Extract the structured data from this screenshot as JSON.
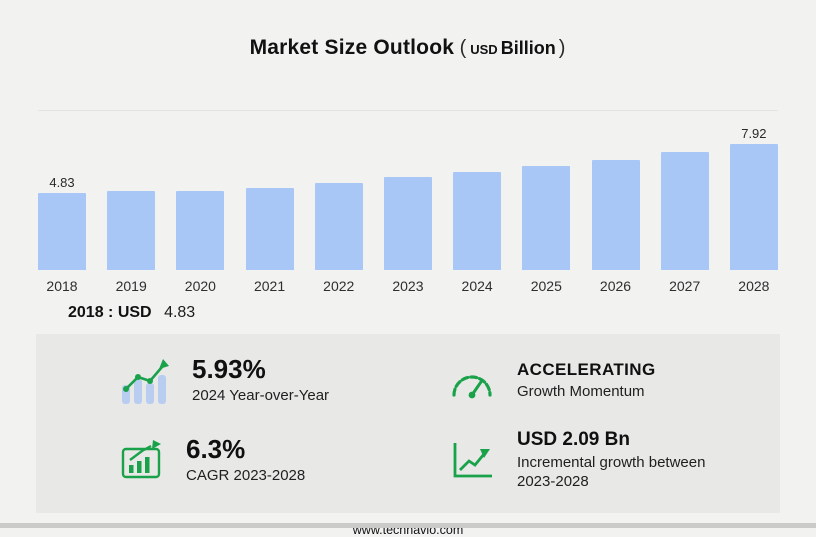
{
  "title": {
    "main": "Market Size Outlook",
    "paren_open": "(",
    "unit_currency": "USD",
    "unit_scale": "Billion",
    "paren_close": ")"
  },
  "chart_data": {
    "type": "bar",
    "title": "Market Size Outlook (USD Billion)",
    "categories": [
      "2018",
      "2019",
      "2020",
      "2021",
      "2022",
      "2023",
      "2024",
      "2025",
      "2026",
      "2027",
      "2028"
    ],
    "values": [
      4.83,
      5.0,
      4.95,
      5.15,
      5.45,
      5.83,
      6.18,
      6.55,
      6.95,
      7.4,
      7.92
    ],
    "value_labels": {
      "2018": "4.83",
      "2028": "7.92"
    },
    "bar_color": "#a9c7f6",
    "ylim": [
      0,
      10
    ],
    "xlabel": "",
    "ylabel": "",
    "grid": "top gridline only",
    "legend": "none"
  },
  "highlight": {
    "year": "2018",
    "separator": ":",
    "currency": "USD",
    "value": "4.83"
  },
  "stats": {
    "yoy": {
      "value": "5.93%",
      "label": "2024 Year-over-Year"
    },
    "momentum": {
      "value": "ACCELERATING",
      "label": "Growth Momentum"
    },
    "cagr": {
      "value": "6.3%",
      "label": "CAGR 2023-2028"
    },
    "incremental": {
      "value": "USD 2.09 Bn",
      "label": "Incremental growth between 2023-2028"
    }
  },
  "footer": {
    "website": "www.technavio.com"
  },
  "colors": {
    "page_bg": "#f2f2f1",
    "panel_bg": "#e8e8e6",
    "bar": "#a9c7f6",
    "accent_green": "#1aa24b"
  }
}
